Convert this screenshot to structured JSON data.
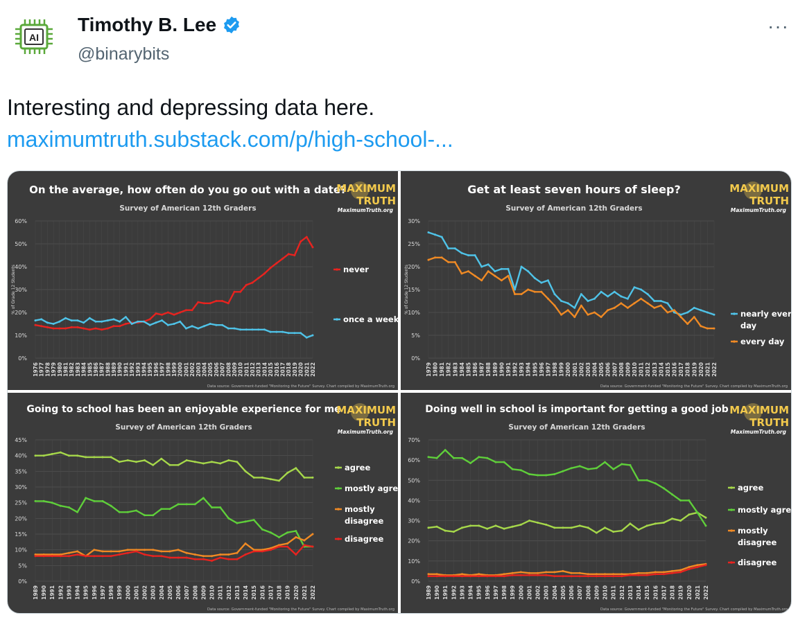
{
  "author": {
    "name": "Timothy B. Lee",
    "handle": "@binarybits",
    "avatar_text": "AI",
    "verified": true
  },
  "more_label": "···",
  "tweet": {
    "text": "Interesting and depressing data here.",
    "link": "maximumtruth.substack.com/p/high-school-..."
  },
  "colors": {
    "panel_bg": "#3b3b3b",
    "link": "#1d9bf0",
    "red": "#e8231f",
    "blue": "#4fc3e8",
    "orange": "#f08a24",
    "light_green": "#a6d84a",
    "green": "#5fcf3a"
  },
  "logo": {
    "line1": "MAXIMUM",
    "line2": "TRUTH",
    "site": "MaximumTruth.org"
  },
  "chart_data": [
    {
      "type": "line",
      "title": "On the average, how often do you go out with a date?",
      "subtitle": "Survey of American 12th Graders",
      "ylabel": "% of Grade 12 Students",
      "ylim": [
        0,
        60
      ],
      "yticks": [
        "0%",
        "10%",
        "20%",
        "30%",
        "40%",
        "50%",
        "60%"
      ],
      "x": [
        "1976",
        "1977",
        "1978",
        "1979",
        "1980",
        "1981",
        "1982",
        "1983",
        "1984",
        "1985",
        "1986",
        "1987",
        "1988",
        "1989",
        "1990",
        "1991",
        "1992",
        "1993",
        "1994",
        "1995",
        "1996",
        "1997",
        "1998",
        "1999",
        "2000",
        "2001",
        "2002",
        "2003",
        "2004",
        "2005",
        "2006",
        "2007",
        "2008",
        "2009",
        "2010",
        "2011",
        "2012",
        "2013",
        "2014",
        "2015",
        "2016",
        "2017",
        "2018",
        "2019",
        "2020",
        "2021",
        "2022"
      ],
      "series": [
        {
          "name": "never",
          "color": "#e8231f",
          "values": [
            14.5,
            14,
            13.5,
            13,
            13,
            13,
            13.5,
            13.5,
            13,
            12.5,
            13,
            12.5,
            13,
            14,
            14,
            15,
            15.5,
            15.5,
            16,
            17,
            19.5,
            19,
            20,
            19,
            20,
            21,
            21,
            24.5,
            24,
            24,
            25,
            25,
            24,
            29,
            29,
            32,
            33,
            35,
            37,
            39.5,
            41.5,
            43.5,
            45.5,
            45,
            51,
            53,
            48.5
          ]
        },
        {
          "name": "once a week",
          "color": "#4fc3e8",
          "values": [
            16.5,
            17,
            15.5,
            15,
            16,
            17.5,
            16.5,
            16.5,
            15.5,
            17.5,
            16,
            16,
            16.5,
            17,
            16,
            18,
            15,
            16,
            16,
            14.5,
            15.5,
            16.5,
            14.5,
            15,
            16,
            13,
            14,
            13,
            14,
            15,
            14.5,
            14.5,
            13,
            13,
            12.5,
            12.5,
            12.5,
            12.5,
            12.5,
            11.5,
            11.5,
            11.5,
            11,
            11,
            11,
            9,
            10
          ]
        }
      ],
      "source": "Data source: Government-funded \"Monitoring the Future\" Survey. Chart compiled by MaximumTruth.org"
    },
    {
      "type": "line",
      "title": "Get at least seven hours of sleep?",
      "subtitle": "Survey of American 12th Graders",
      "ylabel": "% of Grade 12 Students",
      "ylim": [
        0,
        30
      ],
      "yticks": [
        "0%",
        "5%",
        "10%",
        "15%",
        "20%",
        "25%",
        "30%"
      ],
      "x": [
        "1979",
        "1980",
        "1981",
        "1982",
        "1983",
        "1984",
        "1985",
        "1986",
        "1987",
        "1988",
        "1989",
        "1990",
        "1991",
        "1992",
        "1993",
        "1994",
        "1995",
        "1996",
        "1997",
        "1998",
        "1999",
        "2000",
        "2001",
        "2002",
        "2003",
        "2004",
        "2005",
        "2006",
        "2007",
        "2008",
        "2009",
        "2010",
        "2011",
        "2012",
        "2013",
        "2014",
        "2015",
        "2016",
        "2017",
        "2018",
        "2019",
        "2020",
        "2021",
        "2022"
      ],
      "series": [
        {
          "name": "nearly every day",
          "color": "#4fc3e8",
          "values": [
            27.5,
            27,
            26.5,
            24,
            24,
            23,
            22.5,
            22.5,
            20,
            20.5,
            19,
            19.5,
            19.5,
            15,
            20,
            19,
            17.5,
            16.5,
            17,
            14,
            12.5,
            12,
            11,
            14,
            12.5,
            13,
            14.5,
            13.5,
            14.5,
            13.5,
            13,
            15.5,
            15,
            14,
            12.5,
            12.5,
            12,
            10,
            9.5,
            10,
            11,
            10.5,
            10,
            9.5
          ]
        },
        {
          "name": "every day",
          "color": "#f08a24",
          "values": [
            21.5,
            22,
            22,
            21,
            21,
            18.5,
            19,
            18,
            17,
            19,
            18,
            17,
            18,
            14,
            14,
            15,
            14.5,
            14.5,
            13,
            11.5,
            9.5,
            10.5,
            9,
            11.5,
            9.5,
            10,
            9,
            10.5,
            11,
            12,
            11,
            12,
            13,
            12,
            11,
            11.5,
            10,
            10.5,
            9,
            7.5,
            9,
            7,
            6.5,
            6.5
          ]
        }
      ],
      "source": "Data source: Government-funded \"Monitoring the Future\" Survey. Chart compiled by MaximumTruth.org"
    },
    {
      "type": "line",
      "title": "Going to school has been an enjoyable experience for me",
      "subtitle": "Survey of American 12th Graders",
      "ylim": [
        0,
        45
      ],
      "yticks": [
        "0%",
        "5%",
        "10%",
        "15%",
        "20%",
        "25%",
        "30%",
        "35%",
        "40%",
        "45%"
      ],
      "x": [
        "1989",
        "1990",
        "1991",
        "1992",
        "1993",
        "1994",
        "1995",
        "1996",
        "1997",
        "1998",
        "1999",
        "2000",
        "2001",
        "2002",
        "2003",
        "2004",
        "2005",
        "2006",
        "2007",
        "2008",
        "2009",
        "2010",
        "2011",
        "2012",
        "2013",
        "2014",
        "2015",
        "2016",
        "2017",
        "2018",
        "2019",
        "2020",
        "2021",
        "2022"
      ],
      "series": [
        {
          "name": "agree",
          "color": "#a6d84a",
          "values": [
            40,
            40,
            40.5,
            41,
            40,
            40,
            39.5,
            39.5,
            39.5,
            39.5,
            38,
            38.5,
            38,
            38.5,
            37,
            39,
            37,
            37,
            38.5,
            38,
            37.5,
            38,
            37.5,
            38.5,
            38,
            35,
            33,
            33,
            32.5,
            32,
            34.5,
            36,
            33,
            33
          ]
        },
        {
          "name": "mostly agree",
          "color": "#5fcf3a",
          "values": [
            25.5,
            25.5,
            25,
            24,
            23.5,
            22,
            26.5,
            25.5,
            25.5,
            24,
            22,
            22,
            22.5,
            21,
            21,
            23,
            23,
            24.5,
            24.5,
            24.5,
            26.5,
            23.5,
            23.5,
            20,
            18.5,
            19,
            19.5,
            16.5,
            15.5,
            14,
            15.5,
            16,
            11,
            11
          ]
        },
        {
          "name": "mostly disagree",
          "color": "#f08a24",
          "values": [
            8.5,
            8.5,
            8.5,
            8.5,
            9,
            9.5,
            8,
            10,
            9.5,
            9.5,
            9.5,
            10,
            10,
            10,
            10,
            9.5,
            9.5,
            10,
            9,
            8.5,
            8,
            8,
            8.5,
            8.5,
            9,
            12,
            10,
            10,
            10.5,
            11.5,
            12,
            14,
            13,
            15
          ]
        },
        {
          "name": "disagree",
          "color": "#e8231f",
          "values": [
            8,
            8,
            8,
            8,
            8,
            8.5,
            8,
            8,
            8,
            8,
            8.5,
            9,
            9.5,
            8.5,
            8,
            8,
            7.5,
            7.5,
            7.5,
            7,
            7,
            6.5,
            7.5,
            7,
            7,
            8.5,
            9.5,
            9.5,
            10,
            11,
            11,
            8.5,
            11.5,
            11
          ]
        }
      ],
      "source": "Data source: Government-funded \"Monitoring the Future\" Survey. Chart compiled by MaximumTruth.org"
    },
    {
      "type": "line",
      "title": "Doing well in school is important for getting a good job",
      "subtitle": "Survey of American 12th Graders",
      "ylim": [
        0,
        70
      ],
      "yticks": [
        "0%",
        "10%",
        "20%",
        "30%",
        "40%",
        "50%",
        "60%",
        "70%"
      ],
      "x": [
        "1989",
        "1990",
        "1991",
        "1992",
        "1993",
        "1994",
        "1995",
        "1996",
        "1997",
        "1998",
        "1999",
        "2000",
        "2001",
        "2002",
        "2003",
        "2004",
        "2005",
        "2006",
        "2007",
        "2008",
        "2009",
        "2010",
        "2011",
        "2012",
        "2013",
        "2014",
        "2015",
        "2016",
        "2017",
        "2018",
        "2019",
        "2020",
        "2021",
        "2022"
      ],
      "series": [
        {
          "name": "agree",
          "color": "#a6d84a",
          "values": [
            26.5,
            27,
            25,
            24.5,
            26.5,
            27.5,
            27.5,
            26,
            27.5,
            26,
            27,
            28,
            30,
            29,
            28,
            26.5,
            26.5,
            26.5,
            27.5,
            26.5,
            24,
            26.5,
            24.5,
            25,
            28.5,
            25.5,
            27.5,
            28.5,
            29,
            31,
            30,
            33,
            34,
            31.5
          ]
        },
        {
          "name": "mostly agree",
          "color": "#5fcf3a",
          "values": [
            61.5,
            61,
            65,
            61,
            61,
            58.5,
            61.5,
            61,
            59,
            59,
            55.5,
            55,
            53,
            52.5,
            52.5,
            53,
            54.5,
            56,
            57,
            55.5,
            56,
            59,
            55.5,
            58,
            57.5,
            50,
            50,
            48.5,
            46,
            43,
            40,
            40,
            34,
            27.5
          ]
        },
        {
          "name": "mostly disagree",
          "color": "#f08a24",
          "values": [
            3.5,
            3.5,
            3,
            3,
            3.5,
            3,
            3.5,
            3,
            3,
            3.5,
            4,
            4.5,
            4,
            4,
            4.5,
            4.5,
            5,
            4,
            4,
            3.5,
            3.5,
            3.5,
            3.5,
            3.5,
            3.5,
            4,
            4,
            4.5,
            4.5,
            5,
            5.5,
            7,
            8,
            8.5
          ]
        },
        {
          "name": "disagree",
          "color": "#e8231f",
          "values": [
            2.5,
            2.5,
            2.5,
            2.5,
            2.5,
            2.5,
            2.5,
            2.5,
            2.5,
            2.5,
            3,
            3,
            3,
            3,
            3,
            2.5,
            2.5,
            2.5,
            2.5,
            2.5,
            2.5,
            2.5,
            2.5,
            2.5,
            3,
            3,
            3,
            3.5,
            3.5,
            4,
            4.5,
            6,
            7,
            8
          ]
        }
      ],
      "source": "Data source: Government-funded \"Monitoring the Future\" Survey. Chart compiled by MaximumTruth.org"
    }
  ]
}
